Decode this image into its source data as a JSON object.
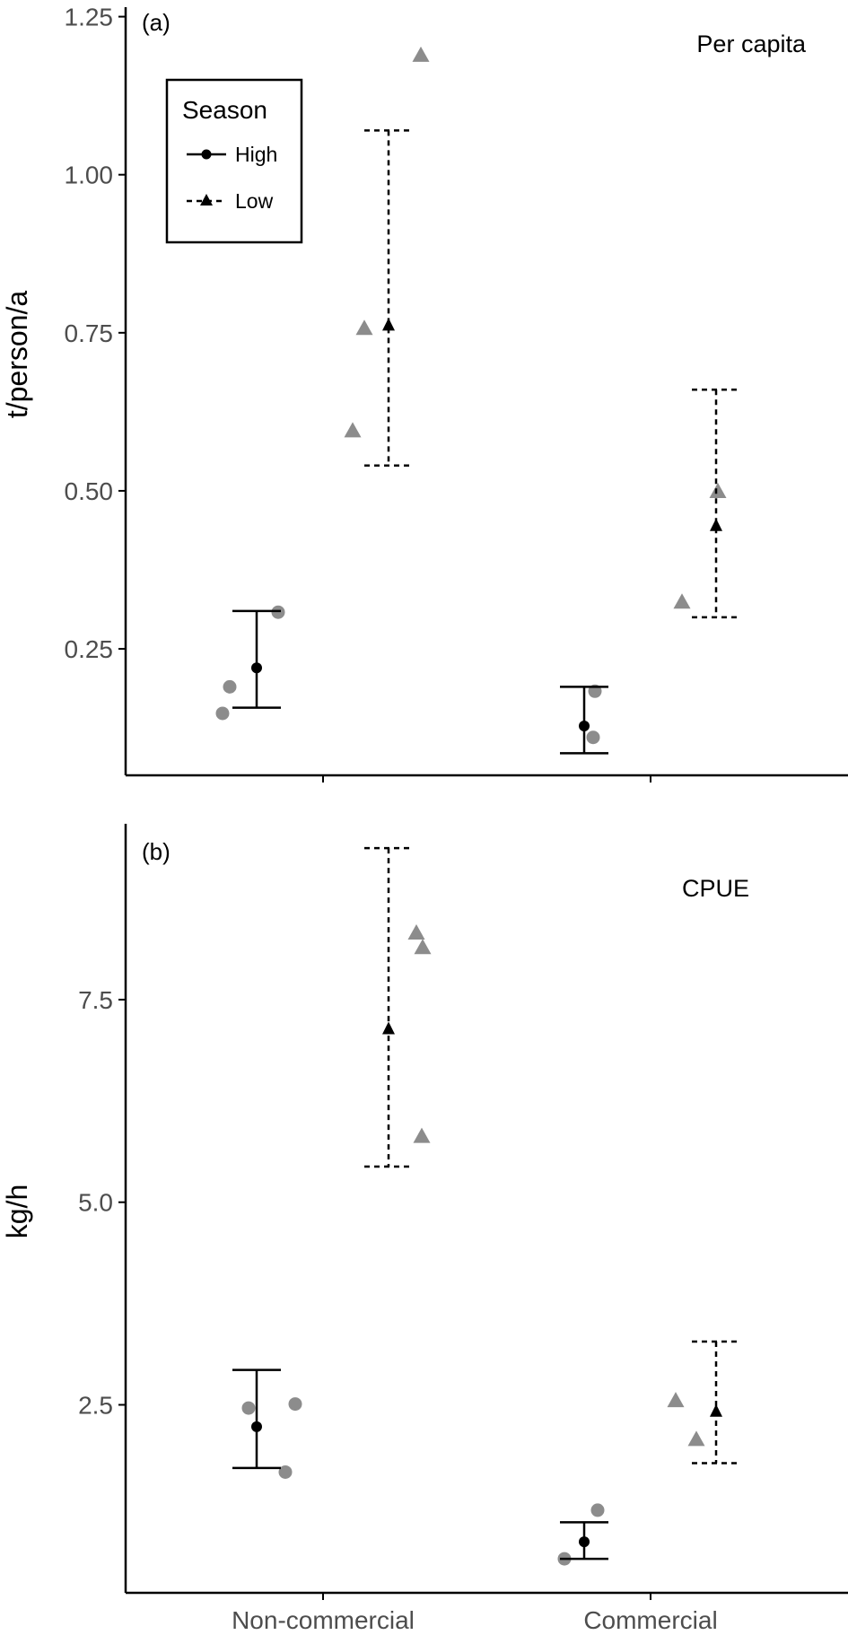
{
  "legend": {
    "title": "Season",
    "items": [
      {
        "label": "High",
        "shape": "circle",
        "line": "solid"
      },
      {
        "label": "Low",
        "shape": "triangle",
        "line": "dashed"
      }
    ]
  },
  "colors": {
    "summary": "#000000",
    "raw_points": "#8c8c8c",
    "axis": "#000000",
    "tick_labels": "#4d4d4d"
  },
  "chart_data": [
    {
      "type": "scatter",
      "tag": "(a)",
      "title": "Per capita",
      "ylabel": "t/person/a",
      "xlabel": "",
      "categories": [
        "Non-commercial",
        "Commercial"
      ],
      "show_x_tick_labels": false,
      "ylim": [
        0.05,
        1.265
      ],
      "yticks": [
        0.25,
        0.5,
        0.75,
        1.0,
        1.25
      ],
      "ytick_labels": [
        "0.25",
        "0.50",
        "0.75",
        "1.00",
        "1.25"
      ],
      "grid": false,
      "legend_position": "top-left",
      "series": [
        {
          "name": "High",
          "summary": [
            {
              "category": "Non-commercial",
              "mean": 0.22,
              "lower": 0.157,
              "upper": 0.31
            },
            {
              "category": "Commercial",
              "mean": 0.128,
              "lower": 0.085,
              "upper": 0.19
            }
          ],
          "points": [
            {
              "category": "Non-commercial",
              "y": 0.148
            },
            {
              "category": "Non-commercial",
              "y": 0.19
            },
            {
              "category": "Non-commercial",
              "y": 0.308
            },
            {
              "category": "Commercial",
              "y": 0.11
            },
            {
              "category": "Commercial",
              "y": 0.183
            }
          ]
        },
        {
          "name": "Low",
          "summary": [
            {
              "category": "Non-commercial",
              "mean": 0.762,
              "lower": 0.54,
              "upper": 1.07
            },
            {
              "category": "Commercial",
              "mean": 0.445,
              "lower": 0.3,
              "upper": 0.66
            }
          ],
          "points": [
            {
              "category": "Non-commercial",
              "y": 0.596
            },
            {
              "category": "Non-commercial",
              "y": 0.758
            },
            {
              "category": "Non-commercial",
              "y": 1.19
            },
            {
              "category": "Commercial",
              "y": 0.325
            },
            {
              "category": "Commercial",
              "y": 0.5
            }
          ]
        }
      ]
    },
    {
      "type": "scatter",
      "tag": "(b)",
      "title": "CPUE",
      "ylabel": "kg/h",
      "xlabel": "",
      "categories": [
        "Non-commercial",
        "Commercial"
      ],
      "show_x_tick_labels": true,
      "ylim": [
        0.18,
        9.67
      ],
      "yticks": [
        2.5,
        5.0,
        7.5
      ],
      "ytick_labels": [
        "2.5",
        "5.0",
        "7.5"
      ],
      "grid": false,
      "series": [
        {
          "name": "High",
          "summary": [
            {
              "category": "Non-commercial",
              "mean": 2.23,
              "lower": 1.72,
              "upper": 2.93
            },
            {
              "category": "Commercial",
              "mean": 0.81,
              "lower": 0.6,
              "upper": 1.05
            }
          ],
          "points": [
            {
              "category": "Non-commercial",
              "y": 2.46
            },
            {
              "category": "Non-commercial",
              "y": 2.51
            },
            {
              "category": "Non-commercial",
              "y": 1.67
            },
            {
              "category": "Commercial",
              "y": 0.6
            },
            {
              "category": "Commercial",
              "y": 1.2
            }
          ]
        },
        {
          "name": "Low",
          "summary": [
            {
              "category": "Non-commercial",
              "mean": 7.14,
              "lower": 5.44,
              "upper": 9.37
            },
            {
              "category": "Commercial",
              "mean": 2.42,
              "lower": 1.78,
              "upper": 3.28
            }
          ],
          "points": [
            {
              "category": "Non-commercial",
              "y": 8.15
            },
            {
              "category": "Non-commercial",
              "y": 8.33
            },
            {
              "category": "Non-commercial",
              "y": 5.82
            },
            {
              "category": "Commercial",
              "y": 2.56
            },
            {
              "category": "Commercial",
              "y": 2.08
            }
          ]
        }
      ]
    }
  ]
}
